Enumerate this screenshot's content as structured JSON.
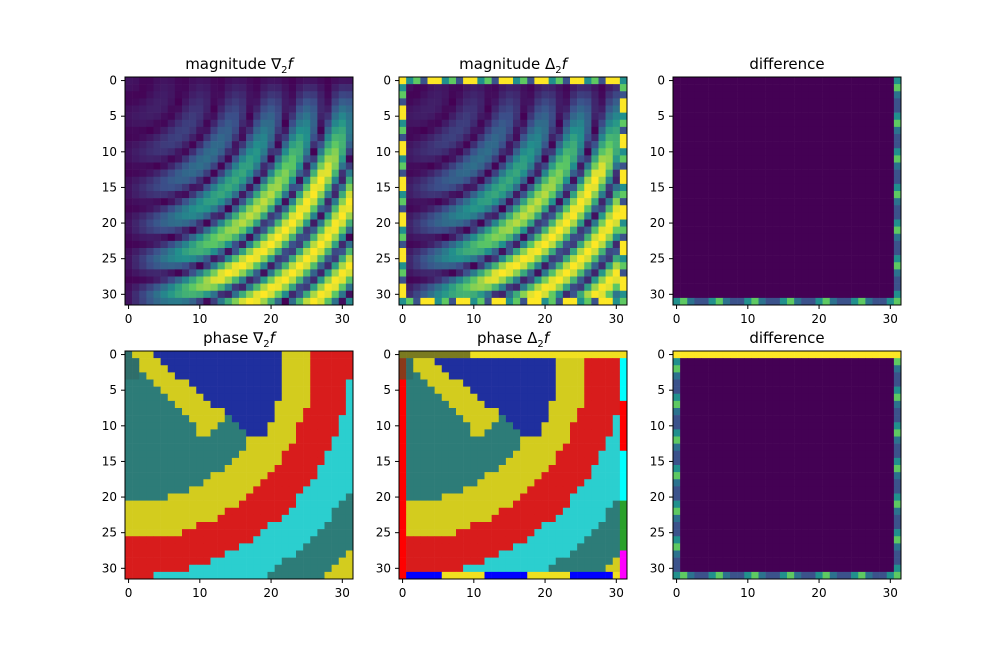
{
  "chart_data": [
    {
      "type": "heatmap",
      "title_main": "magnitude ",
      "title_sym": "∇",
      "title_sub": "2",
      "title_var": "f",
      "field": "magnitude",
      "xticks": [
        0,
        10,
        20,
        30
      ],
      "yticks": [
        0,
        5,
        10,
        15,
        20,
        25,
        30
      ],
      "xlim": [
        -0.5,
        31.5
      ],
      "ylim": [
        31.5,
        -0.5
      ],
      "grid": false
    },
    {
      "type": "heatmap",
      "title_main": "magnitude ",
      "title_sym": "Δ",
      "title_sub": "2",
      "title_var": "f",
      "field": "magnitude",
      "xticks": [
        0,
        10,
        20,
        30
      ],
      "yticks": [
        0,
        5,
        10,
        15,
        20,
        25,
        30
      ],
      "xlim": [
        -0.5,
        31.5
      ],
      "ylim": [
        31.5,
        -0.5
      ],
      "grid": false
    },
    {
      "type": "heatmap",
      "title_main": "difference",
      "title_sym": "",
      "title_sub": "",
      "title_var": "",
      "field": "difference",
      "xticks": [
        0,
        10,
        20,
        30
      ],
      "yticks": [
        0,
        5,
        10,
        15,
        20,
        25,
        30
      ],
      "xlim": [
        -0.5,
        31.5
      ],
      "ylim": [
        31.5,
        -0.5
      ],
      "grid": false
    },
    {
      "type": "heatmap",
      "title_main": "phase ",
      "title_sym": "∇",
      "title_sub": "2",
      "title_var": "f",
      "field": "phase",
      "xticks": [
        0,
        10,
        20,
        30
      ],
      "yticks": [
        0,
        5,
        10,
        15,
        20,
        25,
        30
      ],
      "xlim": [
        -0.5,
        31.5
      ],
      "ylim": [
        31.5,
        -0.5
      ],
      "grid": false
    },
    {
      "type": "heatmap",
      "title_main": "phase ",
      "title_sym": "Δ",
      "title_sub": "2",
      "title_var": "f",
      "field": "phase",
      "xticks": [
        0,
        10,
        20,
        30
      ],
      "yticks": [
        0,
        5,
        10,
        15,
        20,
        25,
        30
      ],
      "xlim": [
        -0.5,
        31.5
      ],
      "ylim": [
        31.5,
        -0.5
      ],
      "grid": false
    },
    {
      "type": "heatmap",
      "title_main": "difference",
      "title_sym": "",
      "title_sub": "",
      "title_var": "",
      "field": "difference",
      "xticks": [
        0,
        10,
        20,
        30
      ],
      "yticks": [
        0,
        5,
        10,
        15,
        20,
        25,
        30
      ],
      "xlim": [
        -0.5,
        31.5
      ],
      "ylim": [
        31.5,
        -0.5
      ],
      "grid": false
    }
  ],
  "colors": {
    "viridis_low": "#440154",
    "viridis_mid": "#21908d",
    "viridis_high": "#fde725",
    "phase_teal": "#2f7f7a",
    "phase_blue": "#1c2aa8",
    "phase_yellow": "#d4cf1a",
    "phase_red": "#e01818",
    "phase_cyan": "#28d8d8"
  }
}
